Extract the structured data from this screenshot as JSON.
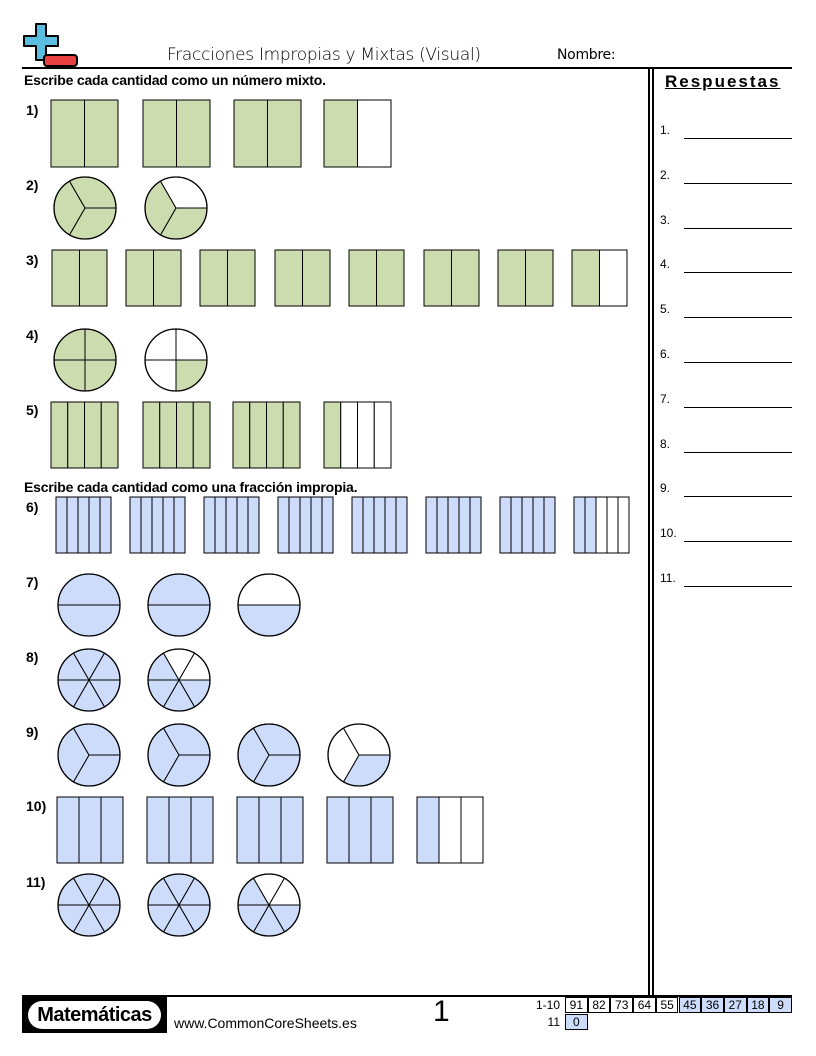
{
  "header": {
    "title": "Fracciones Impropias y Mixtas (Visual)",
    "name_label": "Nombre:",
    "logo_icon": "plus-minus-logo"
  },
  "sections": [
    {
      "instruction": "Escribe cada cantidad como un número mixto."
    },
    {
      "instruction": "Escribe cada cantidad como una fracción impropia."
    }
  ],
  "colors": {
    "green": "#cddcae",
    "blue": "#cddcfb",
    "key_highlight": "#cddcfb"
  },
  "problems": [
    {
      "label": "1)",
      "shape": "rect",
      "parts": 2,
      "wholes": 3,
      "numerator": 1,
      "color": "green"
    },
    {
      "label": "2)",
      "shape": "circle",
      "parts": 3,
      "wholes": 1,
      "numerator": 2,
      "color": "green"
    },
    {
      "label": "3)",
      "shape": "rect",
      "parts": 2,
      "wholes": 7,
      "numerator": 1,
      "color": "green"
    },
    {
      "label": "4)",
      "shape": "circle",
      "parts": 4,
      "wholes": 1,
      "numerator": 1,
      "color": "green"
    },
    {
      "label": "5)",
      "shape": "rect",
      "parts": 4,
      "wholes": 3,
      "numerator": 1,
      "color": "green"
    },
    {
      "label": "6)",
      "shape": "rect",
      "parts": 5,
      "wholes": 7,
      "numerator": 2,
      "color": "blue"
    },
    {
      "label": "7)",
      "shape": "circle",
      "parts": 2,
      "wholes": 2,
      "numerator": 1,
      "color": "blue"
    },
    {
      "label": "8)",
      "shape": "circle",
      "parts": 6,
      "wholes": 1,
      "numerator": 4,
      "color": "blue"
    },
    {
      "label": "9)",
      "shape": "circle",
      "parts": 3,
      "wholes": 3,
      "numerator": 1,
      "color": "blue"
    },
    {
      "label": "10)",
      "shape": "rect",
      "parts": 3,
      "wholes": 4,
      "numerator": 1,
      "color": "blue"
    },
    {
      "label": "11)",
      "shape": "circle",
      "parts": 6,
      "wholes": 2,
      "numerator": 4,
      "color": "blue"
    }
  ],
  "answers": {
    "title": "Respuestas",
    "items": [
      "1.",
      "2.",
      "3.",
      "4.",
      "5.",
      "6.",
      "7.",
      "8.",
      "9.",
      "10.",
      "11."
    ]
  },
  "footer": {
    "brand": "Matemáticas",
    "website": "www.CommonCoreSheets.es",
    "page_number": "1",
    "key": [
      {
        "label": "1-10",
        "values": [
          "91",
          "82",
          "73",
          "64",
          "55",
          "45",
          "36",
          "27",
          "18",
          "9"
        ],
        "highlight_from": 5
      },
      {
        "label": "11",
        "values": [
          "0"
        ],
        "highlight_from": 0
      }
    ]
  }
}
